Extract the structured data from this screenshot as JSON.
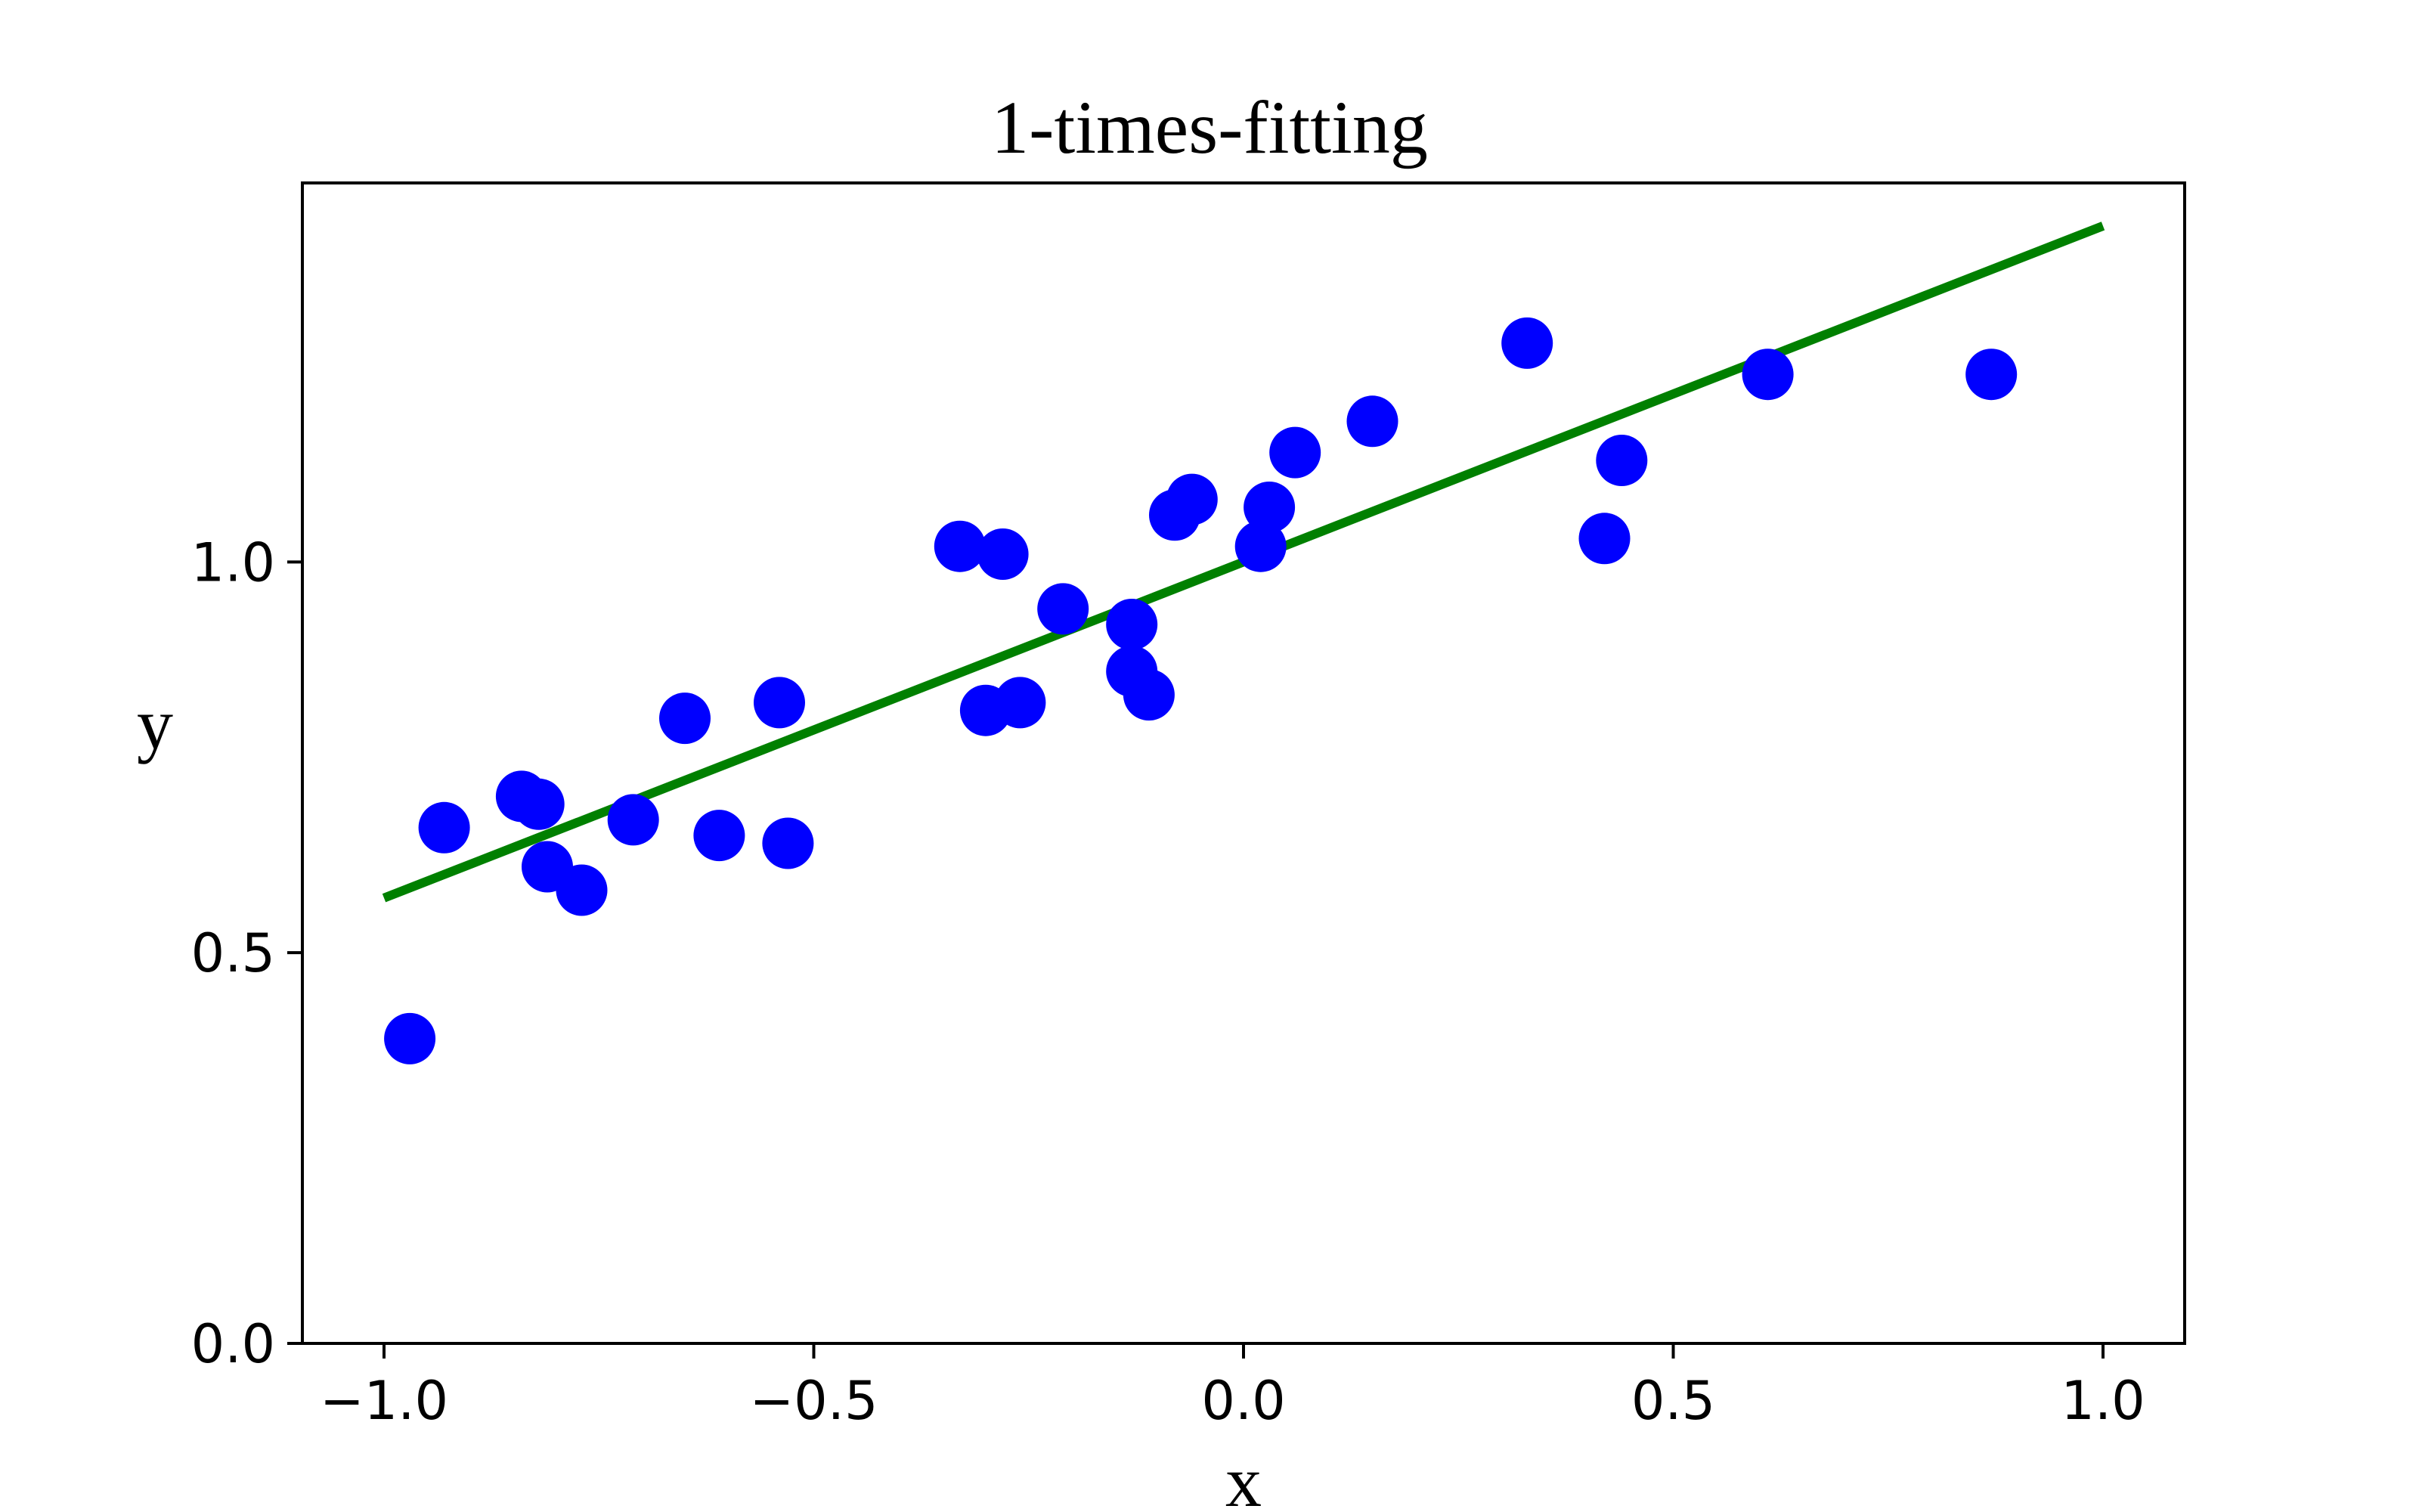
{
  "chart_data": {
    "type": "scatter",
    "title": "1-times-fitting",
    "xlabel": "x",
    "ylabel": "y",
    "xlim": [
      -1.095,
      1.095
    ],
    "ylim": [
      0.0,
      1.485
    ],
    "xticks": [
      -1.0,
      -0.5,
      0.0,
      0.5,
      1.0
    ],
    "xtick_labels": [
      "−1.0",
      "−0.5",
      "0.0",
      "0.5",
      "1.0"
    ],
    "yticks": [
      0.0,
      0.5,
      1.0
    ],
    "ytick_labels": [
      "0.0",
      "0.5",
      "1.0"
    ],
    "grid": false,
    "series": [
      {
        "kind": "scatter",
        "color": "#0000ff",
        "points": [
          [
            -0.97,
            0.39
          ],
          [
            -0.93,
            0.66
          ],
          [
            -0.84,
            0.7
          ],
          [
            -0.82,
            0.69
          ],
          [
            -0.81,
            0.61
          ],
          [
            -0.77,
            0.58
          ],
          [
            -0.71,
            0.67
          ],
          [
            -0.65,
            0.8
          ],
          [
            -0.61,
            0.65
          ],
          [
            -0.54,
            0.82
          ],
          [
            -0.53,
            0.64
          ],
          [
            -0.33,
            1.02
          ],
          [
            -0.28,
            1.01
          ],
          [
            -0.3,
            0.81
          ],
          [
            -0.26,
            0.82
          ],
          [
            -0.21,
            0.94
          ],
          [
            -0.13,
            0.92
          ],
          [
            -0.13,
            0.86
          ],
          [
            -0.11,
            0.83
          ],
          [
            -0.08,
            1.06
          ],
          [
            -0.06,
            1.08
          ],
          [
            0.02,
            1.02
          ],
          [
            0.03,
            1.07
          ],
          [
            0.06,
            1.14
          ],
          [
            0.15,
            1.18
          ],
          [
            0.33,
            1.28
          ],
          [
            0.42,
            1.03
          ],
          [
            0.44,
            1.13
          ],
          [
            0.61,
            1.24
          ],
          [
            0.87,
            1.24
          ]
        ]
      },
      {
        "kind": "line",
        "color": "#008000",
        "points": [
          [
            -1.0,
            0.57
          ],
          [
            1.0,
            1.43
          ]
        ]
      }
    ]
  }
}
